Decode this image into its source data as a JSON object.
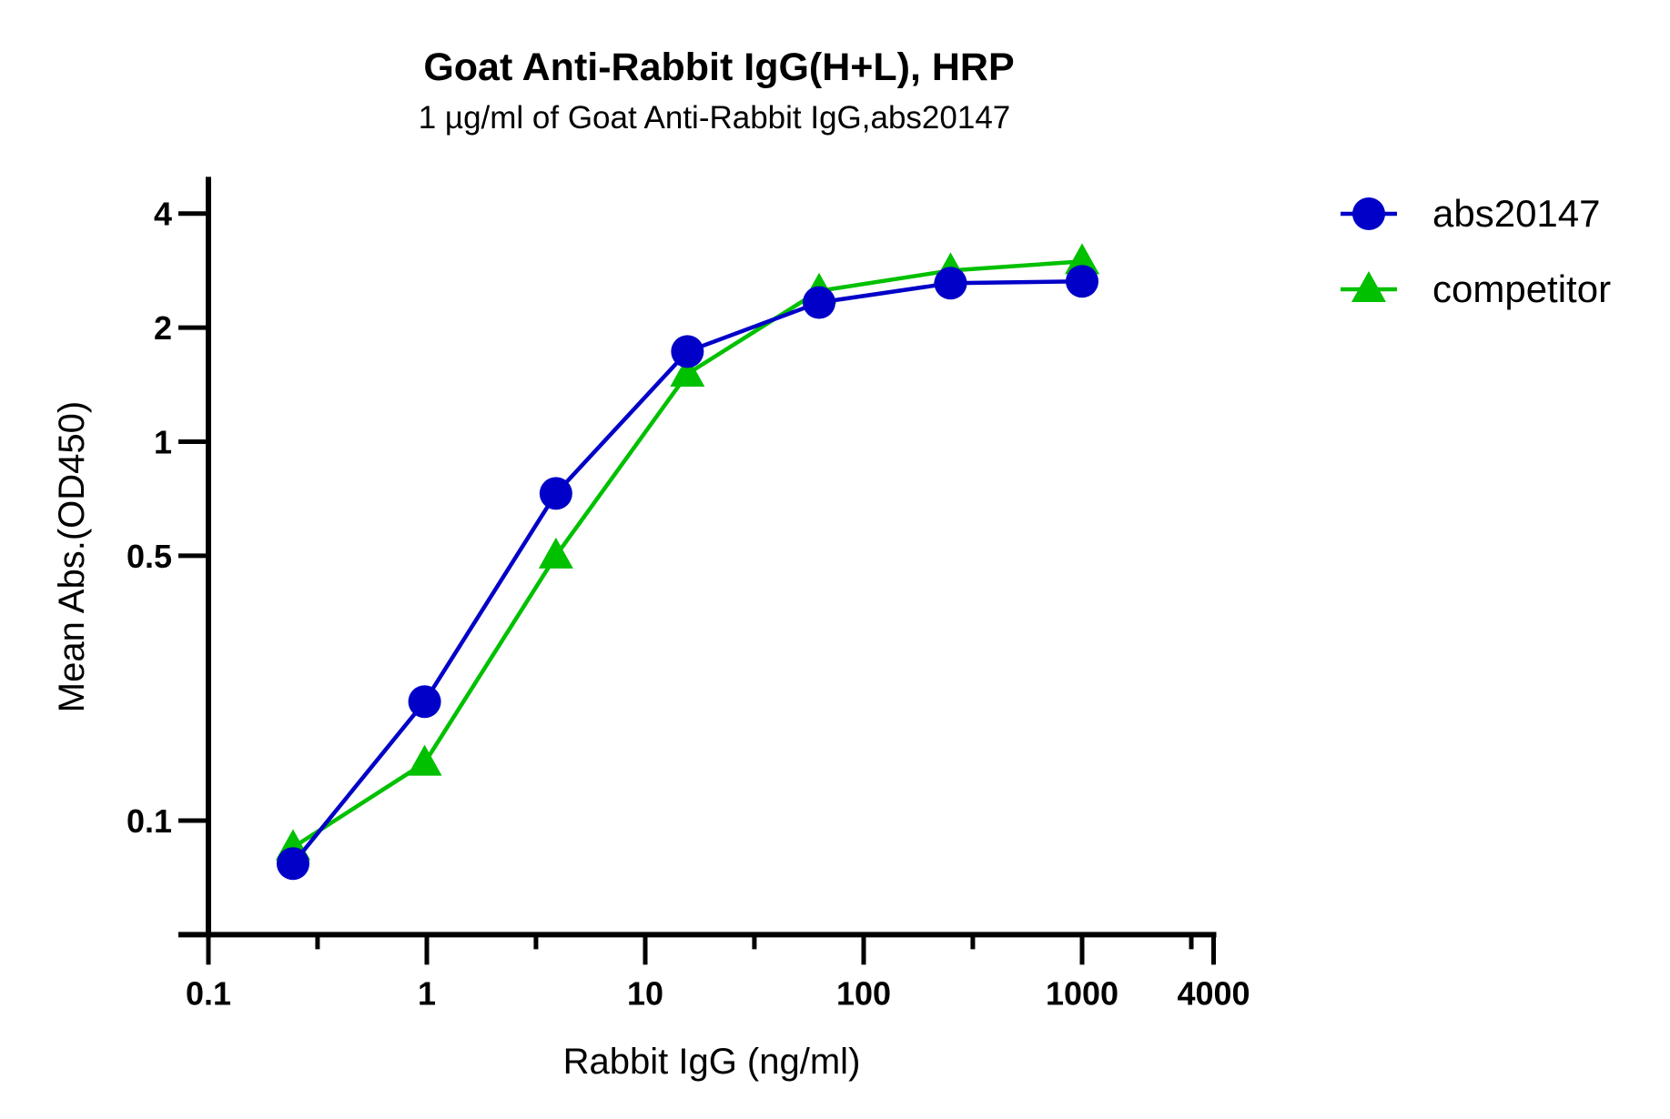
{
  "chart_data": {
    "type": "line",
    "title": "Goat Anti-Rabbit IgG(H+L), HRP",
    "subtitle": "1 µg/ml of Goat Anti-Rabbit IgG,abs20147",
    "xlabel": "Rabbit IgG (ng/ml)",
    "ylabel": "Mean Abs.(OD450)",
    "xscale": "log",
    "yscale": "log",
    "xlim": [
      0.1,
      4000
    ],
    "ylim": [
      0.05,
      5
    ],
    "xticks": [
      0.1,
      1,
      10,
      100,
      1000,
      4000
    ],
    "xtick_labels": [
      "0.1",
      "1",
      "10",
      "100",
      "1000",
      "4000"
    ],
    "yticks": [
      0.1,
      0.5,
      1,
      2,
      4
    ],
    "ytick_labels": [
      "0.1",
      "0.5",
      "1",
      "2",
      "4"
    ],
    "grid": false,
    "legend_position": "top-right",
    "x": [
      0.244,
      0.977,
      3.9,
      15.6,
      62.5,
      250,
      1000
    ],
    "series": [
      {
        "name": "abs20147",
        "marker": "circle",
        "color": "#0000c8",
        "values": [
          0.077,
          0.206,
          0.73,
          1.73,
          2.33,
          2.62,
          2.65
        ]
      },
      {
        "name": "competitor",
        "marker": "triangle",
        "color": "#00c000",
        "values": [
          0.085,
          0.142,
          0.5,
          1.51,
          2.5,
          2.83,
          2.99
        ]
      }
    ]
  }
}
